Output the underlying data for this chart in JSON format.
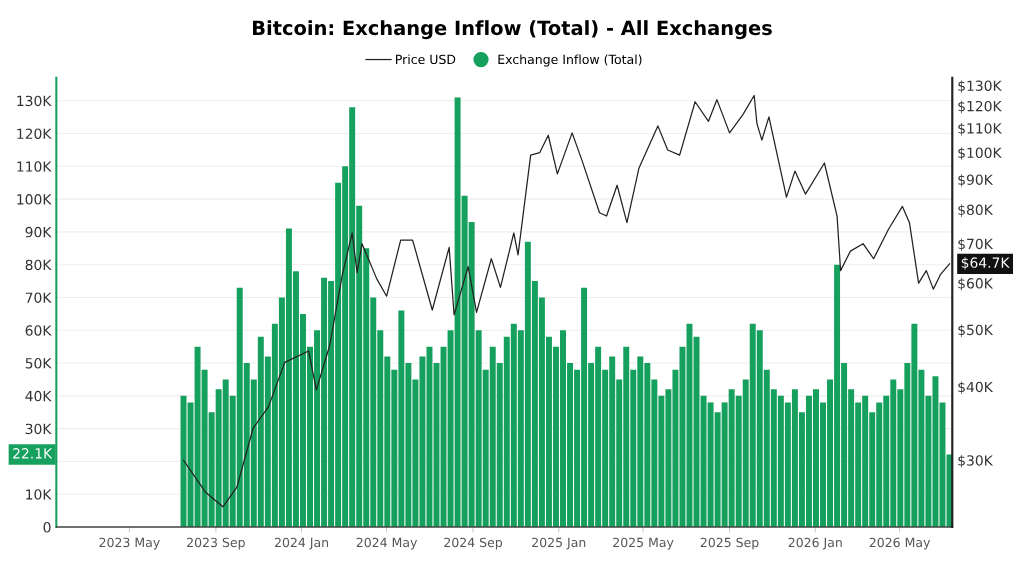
{
  "chart_data": {
    "type": "bar",
    "title": "Bitcoin: Exchange Inflow (Total) - All Exchanges",
    "legend": "top",
    "grid": "y",
    "xlim": [
      "2023-01-17",
      "2026-07-15"
    ],
    "xticks": [
      {
        "value": "2023-05-01",
        "label": "2023 May"
      },
      {
        "value": "2023-09-01",
        "label": "2023 Sep"
      },
      {
        "value": "2024-01-01",
        "label": "2024 Jan"
      },
      {
        "value": "2024-05-01",
        "label": "2024 May"
      },
      {
        "value": "2024-09-01",
        "label": "2024 Sep"
      },
      {
        "value": "2025-01-01",
        "label": "2025 Jan"
      },
      {
        "value": "2025-05-01",
        "label": "2025 May"
      },
      {
        "value": "2025-09-01",
        "label": "2025 Sep"
      },
      {
        "value": "2026-01-01",
        "label": "2026 Jan"
      },
      {
        "value": "2026-05-01",
        "label": "2026 May"
      }
    ],
    "ylim": [
      0,
      137000
    ],
    "yticks": [
      0,
      {
        "value": 10000,
        "label": "10K"
      },
      {
        "value": 20000,
        "label": null
      },
      {
        "value": 30000,
        "label": "30K"
      },
      {
        "value": 40000,
        "label": "40K"
      },
      {
        "value": 50000,
        "label": "50K"
      },
      {
        "value": 60000,
        "label": "60K"
      },
      {
        "value": 70000,
        "label": "70K"
      },
      {
        "value": 80000,
        "label": "80K"
      },
      {
        "value": 90000,
        "label": "90K"
      },
      {
        "value": 100000,
        "label": "100K"
      },
      {
        "value": 110000,
        "label": "110K"
      },
      {
        "value": 120000,
        "label": "120K"
      },
      {
        "value": 130000,
        "label": "130K"
      }
    ],
    "log": "y2",
    "y2lim": [
      23100,
      134000
    ],
    "y2ticks": [
      {
        "value": 30000,
        "label": "$30K"
      },
      {
        "value": 40000,
        "label": "$40K"
      },
      {
        "value": 50000,
        "label": "$50K"
      },
      {
        "value": 60000,
        "label": "$60K"
      },
      {
        "value": 70000,
        "label": "$70K"
      },
      {
        "value": 80000,
        "label": "$80K"
      },
      {
        "value": 90000,
        "label": "$90K"
      },
      {
        "value": 100000,
        "label": "$100K"
      },
      {
        "value": 110000,
        "label": "$110K"
      },
      {
        "value": 120000,
        "label": "$120K"
      },
      {
        "value": 130000,
        "label": "$130K"
      }
    ],
    "annotations": [
      "$64.7K",
      "22.1K"
    ],
    "series": [
      {
        "name": "Price USD",
        "type": "line",
        "axis": "y2",
        "color": "#222222",
        "x": [
          "2023-07-17",
          "2023-08-17",
          "2023-09-11",
          "2023-10-01",
          "2023-10-24",
          "2023-11-15",
          "2023-12-08",
          "2024-01-11",
          "2024-01-22",
          "2024-02-10",
          "2024-02-28",
          "2024-03-13",
          "2024-03-20",
          "2024-03-27",
          "2024-04-17",
          "2024-05-01",
          "2024-05-21",
          "2024-06-07",
          "2024-07-05",
          "2024-07-29",
          "2024-08-05",
          "2024-08-25",
          "2024-09-06",
          "2024-09-27",
          "2024-10-10",
          "2024-10-29",
          "2024-11-04",
          "2024-11-22",
          "2024-12-05",
          "2024-12-17",
          "2024-12-30",
          "2025-01-20",
          "2025-02-03",
          "2025-02-28",
          "2025-03-10",
          "2025-03-25",
          "2025-04-08",
          "2025-04-25",
          "2025-05-22",
          "2025-06-05",
          "2025-06-22",
          "2025-07-14",
          "2025-08-02",
          "2025-08-14",
          "2025-09-01",
          "2025-09-20",
          "2025-10-06",
          "2025-10-10",
          "2025-10-17",
          "2025-10-27",
          "2025-11-21",
          "2025-12-03",
          "2025-12-18",
          "2026-01-14",
          "2026-02-01",
          "2026-02-06",
          "2026-02-20",
          "2026-03-10",
          "2026-03-25",
          "2026-04-15",
          "2026-05-05",
          "2026-05-15",
          "2026-05-28",
          "2026-06-08",
          "2026-06-18",
          "2026-06-28",
          "2026-07-11"
        ],
        "values": [
          30000,
          26500,
          25000,
          27000,
          34000,
          37000,
          44000,
          46000,
          39500,
          47000,
          62000,
          73000,
          62500,
          70000,
          61000,
          57000,
          71000,
          71000,
          54000,
          69000,
          53000,
          64000,
          53500,
          66000,
          59000,
          73000,
          67000,
          99000,
          100000,
          107000,
          92000,
          108000,
          97000,
          79000,
          78000,
          88000,
          76000,
          94000,
          111000,
          101000,
          99000,
          122000,
          113000,
          123000,
          108000,
          116000,
          125000,
          112000,
          105000,
          115000,
          84000,
          93000,
          85000,
          96000,
          78000,
          63000,
          68000,
          70000,
          66000,
          74000,
          81000,
          76000,
          60000,
          63000,
          58600,
          62000,
          64700
        ]
      },
      {
        "name": "Exchange Inflow (Total)",
        "color": "#16a05d",
        "x": [
          "2023-07-17",
          "2023-07-27",
          "2023-08-06",
          "2023-08-16",
          "2023-08-26",
          "2023-09-05",
          "2023-09-15",
          "2023-09-25",
          "2023-10-05",
          "2023-10-15",
          "2023-10-25",
          "2023-11-04",
          "2023-11-14",
          "2023-11-24",
          "2023-12-04",
          "2023-12-14",
          "2023-12-24",
          "2024-01-03",
          "2024-01-13",
          "2024-01-23",
          "2024-02-02",
          "2024-02-12",
          "2024-02-22",
          "2024-03-03",
          "2024-03-13",
          "2024-03-23",
          "2024-04-02",
          "2024-04-12",
          "2024-04-22",
          "2024-05-02",
          "2024-05-12",
          "2024-05-22",
          "2024-06-01",
          "2024-06-11",
          "2024-06-21",
          "2024-07-01",
          "2024-07-11",
          "2024-07-21",
          "2024-07-31",
          "2024-08-10",
          "2024-08-20",
          "2024-08-30",
          "2024-09-09",
          "2024-09-19",
          "2024-09-29",
          "2024-10-09",
          "2024-10-19",
          "2024-10-29",
          "2024-11-08",
          "2024-11-18",
          "2024-11-28",
          "2024-12-08",
          "2024-12-18",
          "2024-12-28",
          "2025-01-07",
          "2025-01-17",
          "2025-01-27",
          "2025-02-06",
          "2025-02-16",
          "2025-02-26",
          "2025-03-08",
          "2025-03-18",
          "2025-03-28",
          "2025-04-07",
          "2025-04-17",
          "2025-04-27",
          "2025-05-07",
          "2025-05-17",
          "2025-05-27",
          "2025-06-06",
          "2025-06-16",
          "2025-06-26",
          "2025-07-06",
          "2025-07-16",
          "2025-07-26",
          "2025-08-05",
          "2025-08-15",
          "2025-08-25",
          "2025-09-04",
          "2025-09-14",
          "2025-09-24",
          "2025-10-04",
          "2025-10-14",
          "2025-10-24",
          "2025-11-03",
          "2025-11-13",
          "2025-11-23",
          "2025-12-03",
          "2025-12-13",
          "2025-12-23",
          "2026-01-02",
          "2026-01-12",
          "2026-01-22",
          "2026-02-01",
          "2026-02-11",
          "2026-02-21",
          "2026-03-03",
          "2026-03-13",
          "2026-03-23",
          "2026-04-02",
          "2026-04-12",
          "2026-04-22",
          "2026-05-02",
          "2026-05-12",
          "2026-05-22",
          "2026-06-01",
          "2026-06-11",
          "2026-06-21",
          "2026-07-01",
          "2026-07-11"
        ],
        "values": [
          40000,
          38000,
          55000,
          48000,
          35000,
          42000,
          45000,
          40000,
          73000,
          50000,
          45000,
          58000,
          52000,
          62000,
          70000,
          91000,
          78000,
          65000,
          55000,
          60000,
          76000,
          75000,
          105000,
          110000,
          128000,
          98000,
          85000,
          70000,
          60000,
          52000,
          48000,
          66000,
          50000,
          45000,
          52000,
          55000,
          50000,
          55000,
          60000,
          131000,
          101000,
          93000,
          60000,
          48000,
          55000,
          50000,
          58000,
          62000,
          60000,
          87000,
          75000,
          70000,
          58000,
          55000,
          60000,
          50000,
          48000,
          73000,
          50000,
          55000,
          48000,
          52000,
          45000,
          55000,
          48000,
          52000,
          50000,
          45000,
          40000,
          42000,
          48000,
          55000,
          62000,
          58000,
          40000,
          38000,
          35000,
          38000,
          42000,
          40000,
          45000,
          62000,
          60000,
          48000,
          42000,
          40000,
          38000,
          42000,
          35000,
          40000,
          42000,
          38000,
          45000,
          80000,
          50000,
          42000,
          38000,
          40000,
          35000,
          38000,
          40000,
          45000,
          42000,
          50000,
          62000,
          48000,
          40000,
          46000,
          38000,
          22100
        ]
      }
    ]
  }
}
